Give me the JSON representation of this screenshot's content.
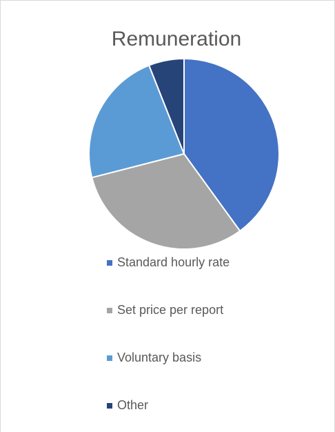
{
  "chart_data": {
    "type": "pie",
    "title": "Remuneration",
    "categories": [
      "Standard hourly rate",
      "Set price per report",
      "Voluntary basis",
      "Other"
    ],
    "values": [
      40,
      31,
      23,
      6
    ],
    "colors": [
      "#4472c4",
      "#a5a5a5",
      "#5b9bd5",
      "#264478"
    ],
    "legend": "bottom"
  }
}
